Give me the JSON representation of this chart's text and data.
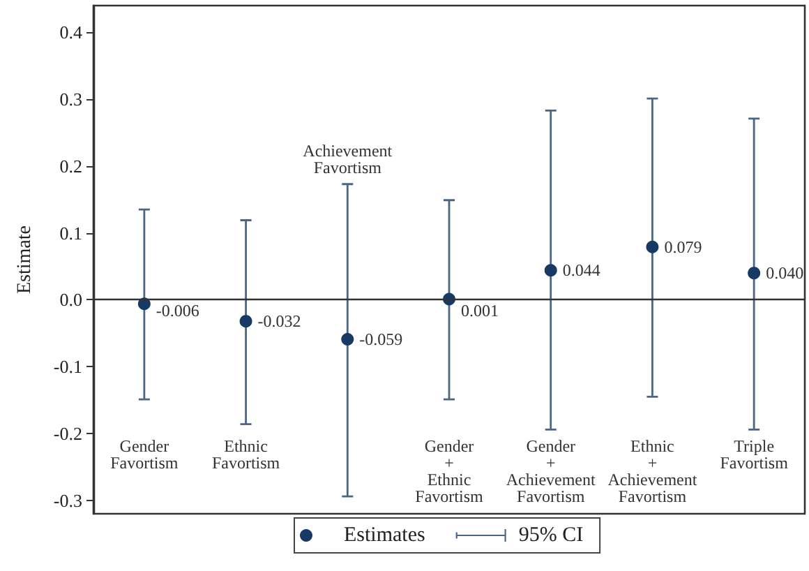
{
  "chart_data": {
    "type": "scatter",
    "ylabel": "Estimate",
    "categories": [
      "Gender\nFavortism",
      "Ethnic\nFavortism",
      "Achievement\nFavortism",
      "Gender\n+\nEthnic\nFavortism",
      "Gender\n+\nAchievement\nFavortism",
      "Ethnic\n+\nAchievement\nFavortism",
      "Triple\nFavortism"
    ],
    "series": [
      {
        "name": "Estimates",
        "color": "#173a64",
        "values": [
          -0.006,
          -0.032,
          -0.059,
          0.001,
          0.044,
          0.079,
          0.04
        ],
        "value_labels": [
          "-0.006",
          "-0.032",
          "-0.059",
          "0.001",
          "0.044",
          "0.079",
          "0.040"
        ],
        "errors": [
          [
            -0.149,
            0.135
          ],
          [
            -0.186,
            0.119
          ],
          [
            -0.294,
            0.173
          ],
          [
            -0.149,
            0.149
          ],
          [
            -0.194,
            0.283
          ],
          [
            -0.145,
            0.301
          ],
          [
            -0.194,
            0.271
          ]
        ]
      }
    ],
    "annotations": [
      "95% CI"
    ],
    "ylim": [
      -0.32,
      0.44
    ],
    "yticks": [
      -0.3,
      -0.2,
      -0.1,
      {
        "value": 0,
        "label": "0.0"
      },
      0.1,
      0.2,
      0.3,
      0.4
    ],
    "ref_lines": [
      {
        "axis": "y",
        "value": 0,
        "color": "#333333"
      }
    ],
    "legend": "bottom",
    "marker": "circle"
  }
}
